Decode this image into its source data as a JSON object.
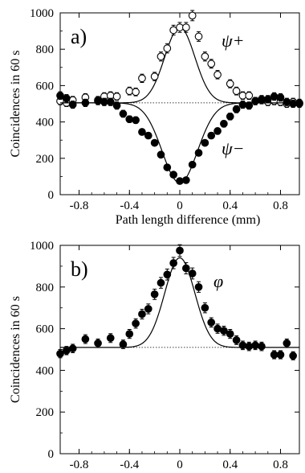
{
  "chart_data": [
    {
      "type": "scatter",
      "panel_label": "a)",
      "xlabel": "Path length difference (mm)",
      "ylabel": "Coincidences in 60 s",
      "xlim": [
        -0.95,
        0.95
      ],
      "ylim": [
        0,
        1000
      ],
      "xticks": [
        -0.8,
        -0.4,
        0,
        0.4,
        0.8
      ],
      "xtick_labels": [
        "-0.8",
        "-0.4",
        "0",
        "0.4",
        "0.8"
      ],
      "yticks": [
        0,
        200,
        400,
        600,
        800,
        1000
      ],
      "ytick_labels": [
        "0",
        "200",
        "400",
        "600",
        "800",
        "1000"
      ],
      "baseline": 505,
      "series": [
        {
          "name": "ψ+",
          "marker": "open-circle",
          "x": [
            -0.95,
            -0.9,
            -0.85,
            -0.75,
            -0.65,
            -0.6,
            -0.55,
            -0.5,
            -0.4,
            -0.35,
            -0.3,
            -0.2,
            -0.15,
            -0.1,
            -0.05,
            0.0,
            0.05,
            0.1,
            0.15,
            0.2,
            0.25,
            0.3,
            0.4,
            0.45,
            0.5,
            0.55,
            0.6,
            0.65,
            0.7,
            0.75,
            0.8,
            0.85,
            0.9,
            0.95
          ],
          "y": [
            515,
            505,
            520,
            535,
            520,
            540,
            545,
            540,
            570,
            565,
            640,
            650,
            760,
            805,
            905,
            920,
            920,
            985,
            870,
            760,
            720,
            660,
            610,
            570,
            545,
            545,
            515,
            525,
            510,
            515,
            510,
            500,
            510,
            505
          ],
          "fit": {
            "amplitude": 415,
            "sigma": 0.12,
            "center": 0.0
          }
        },
        {
          "name": "ψ−",
          "marker": "filled-circle",
          "x": [
            -0.95,
            -0.9,
            -0.85,
            -0.75,
            -0.65,
            -0.6,
            -0.55,
            -0.5,
            -0.45,
            -0.4,
            -0.35,
            -0.3,
            -0.25,
            -0.2,
            -0.15,
            -0.1,
            -0.05,
            0.0,
            0.05,
            0.1,
            0.15,
            0.2,
            0.25,
            0.3,
            0.35,
            0.4,
            0.45,
            0.5,
            0.55,
            0.6,
            0.65,
            0.7,
            0.75,
            0.8,
            0.85,
            0.9,
            0.95
          ],
          "y": [
            545,
            530,
            495,
            505,
            515,
            510,
            510,
            490,
            445,
            415,
            410,
            345,
            325,
            285,
            220,
            150,
            110,
            75,
            80,
            165,
            230,
            285,
            325,
            350,
            390,
            430,
            470,
            495,
            490,
            515,
            520,
            525,
            540,
            535,
            510,
            500,
            500
          ],
          "fit": {
            "amplitude": -440,
            "sigma": 0.14,
            "center": 0.0
          }
        }
      ]
    },
    {
      "type": "scatter",
      "panel_label": "b)",
      "xlabel": "Path length difference (mm)",
      "ylabel": "Coincidences in 60 s",
      "xlim": [
        -0.95,
        0.95
      ],
      "ylim": [
        0,
        1000
      ],
      "xticks": [
        -0.8,
        -0.4,
        0,
        0.4,
        0.8
      ],
      "xtick_labels": [
        "-0.8",
        "-0.4",
        "0",
        "0.4",
        "0.8"
      ],
      "yticks": [
        0,
        200,
        400,
        600,
        800,
        1000
      ],
      "ytick_labels": [
        "0",
        "200",
        "400",
        "600",
        "800",
        "1000"
      ],
      "baseline": 510,
      "series": [
        {
          "name": "φ",
          "marker": "filled-circle",
          "x": [
            -0.95,
            -0.9,
            -0.85,
            -0.75,
            -0.65,
            -0.55,
            -0.45,
            -0.4,
            -0.35,
            -0.3,
            -0.25,
            -0.2,
            -0.15,
            -0.1,
            -0.05,
            0.0,
            0.05,
            0.1,
            0.15,
            0.2,
            0.25,
            0.3,
            0.35,
            0.4,
            0.45,
            0.5,
            0.55,
            0.6,
            0.65,
            0.75,
            0.8,
            0.85,
            0.9
          ],
          "y": [
            480,
            495,
            505,
            550,
            530,
            555,
            525,
            575,
            625,
            670,
            695,
            765,
            820,
            860,
            915,
            975,
            890,
            865,
            800,
            700,
            630,
            600,
            590,
            575,
            545,
            520,
            515,
            520,
            515,
            475,
            475,
            530,
            470
          ],
          "fit": {
            "amplitude": 430,
            "sigma": 0.12,
            "center": 0.0
          }
        }
      ]
    }
  ]
}
